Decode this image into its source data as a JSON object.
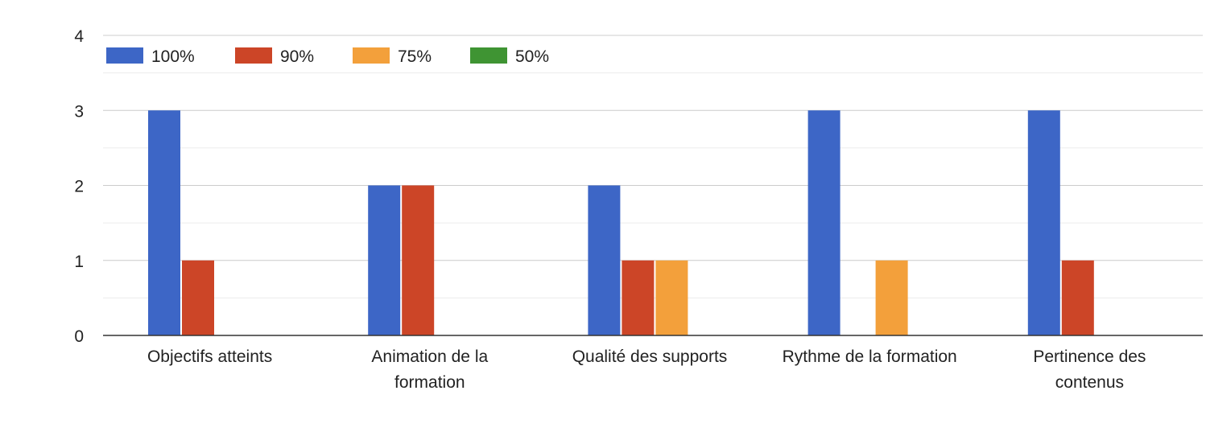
{
  "chart_data": {
    "type": "bar",
    "categories": [
      [
        "Objectifs atteints"
      ],
      [
        "Animation de la",
        "formation"
      ],
      [
        "Qualité des supports"
      ],
      [
        "Rythme de la formation"
      ],
      [
        "Pertinence des",
        "contenus"
      ]
    ],
    "series": [
      {
        "name": "100%",
        "color": "#3d66c6",
        "values": [
          3,
          2,
          2,
          3,
          3
        ]
      },
      {
        "name": "90%",
        "color": "#cc4527",
        "values": [
          1,
          2,
          1,
          0,
          1
        ]
      },
      {
        "name": "75%",
        "color": "#f3a03b",
        "values": [
          0,
          0,
          1,
          1,
          0
        ]
      },
      {
        "name": "50%",
        "color": "#3f9433",
        "values": [
          0,
          0,
          0,
          0,
          0
        ]
      }
    ],
    "yticks": [
      0,
      1,
      2,
      3,
      4
    ],
    "ylim": [
      0,
      4
    ],
    "grid": true,
    "legend_position": "top-left"
  }
}
